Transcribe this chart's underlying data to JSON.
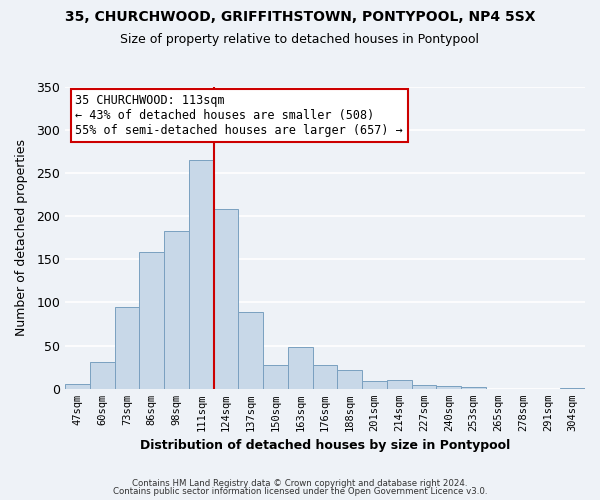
{
  "title": "35, CHURCHWOOD, GRIFFITHSTOWN, PONTYPOOL, NP4 5SX",
  "subtitle": "Size of property relative to detached houses in Pontypool",
  "xlabel": "Distribution of detached houses by size in Pontypool",
  "ylabel": "Number of detached properties",
  "bar_color": "#c8d8e8",
  "bar_edge_color": "#7aa0c0",
  "background_color": "#eef2f7",
  "grid_color": "#ffffff",
  "bin_labels": [
    "47sqm",
    "60sqm",
    "73sqm",
    "86sqm",
    "98sqm",
    "111sqm",
    "124sqm",
    "137sqm",
    "150sqm",
    "163sqm",
    "176sqm",
    "188sqm",
    "201sqm",
    "214sqm",
    "227sqm",
    "240sqm",
    "253sqm",
    "265sqm",
    "278sqm",
    "291sqm",
    "304sqm"
  ],
  "bar_heights": [
    6,
    31,
    95,
    158,
    183,
    265,
    208,
    89,
    28,
    48,
    28,
    22,
    9,
    10,
    4,
    3,
    2,
    0,
    0,
    0,
    1
  ],
  "ylim": [
    0,
    350
  ],
  "yticks": [
    0,
    50,
    100,
    150,
    200,
    250,
    300,
    350
  ],
  "vline_index": 5,
  "vline_color": "#cc0000",
  "annotation_title": "35 CHURCHWOOD: 113sqm",
  "annotation_line1": "← 43% of detached houses are smaller (508)",
  "annotation_line2": "55% of semi-detached houses are larger (657) →",
  "annotation_box_color": "#ffffff",
  "annotation_box_edge": "#cc0000",
  "footer1": "Contains HM Land Registry data © Crown copyright and database right 2024.",
  "footer2": "Contains public sector information licensed under the Open Government Licence v3.0."
}
